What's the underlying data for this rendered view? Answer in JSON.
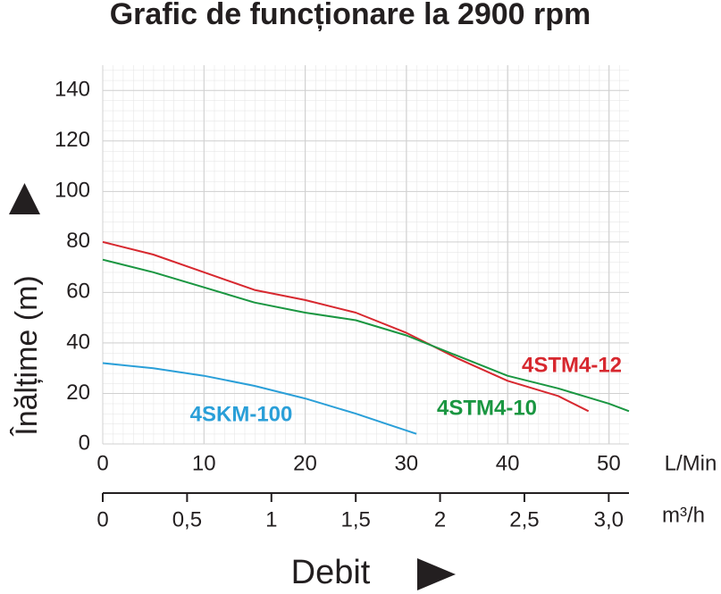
{
  "chart_data": {
    "type": "line",
    "title": "Grafic de funcționare la 2900 rpm",
    "y_label": "Înălțime (m)",
    "x_label": "Debit",
    "x_unit": "L/Min",
    "x2_unit": "m³/h",
    "xlim": [
      0,
      52
    ],
    "xticks": [
      0,
      10,
      20,
      30,
      40,
      50
    ],
    "x2lim": [
      0,
      3.12
    ],
    "x2ticks": [
      0,
      {
        "value": 0.5,
        "label": "0,5"
      },
      1,
      {
        "value": 1.5,
        "label": "1,5"
      },
      2,
      {
        "value": 2.5,
        "label": "2,5"
      },
      {
        "value": 3.0,
        "label": "3,0"
      }
    ],
    "ylim": [
      0,
      150
    ],
    "yticks": [
      0,
      20,
      40,
      60,
      80,
      100,
      120,
      140
    ],
    "grid": true,
    "series": [
      {
        "name": "4STM4-12",
        "color": "#d7282f",
        "x": [
          0,
          5,
          10,
          15,
          20,
          25,
          30,
          35,
          40,
          45,
          48
        ],
        "values": [
          80,
          75,
          68,
          61,
          57,
          52,
          44,
          34,
          25,
          19,
          13
        ]
      },
      {
        "name": "4STM4-10",
        "color": "#1a9641",
        "x": [
          0,
          5,
          10,
          15,
          20,
          25,
          30,
          35,
          40,
          45,
          50,
          52
        ],
        "values": [
          73,
          68,
          62,
          56,
          52,
          49,
          43,
          35,
          27,
          22,
          16,
          13
        ]
      },
      {
        "name": "4SKM-100",
        "color": "#2a9fd8",
        "x": [
          0,
          5,
          10,
          15,
          20,
          25,
          28,
          31
        ],
        "values": [
          32,
          30,
          27,
          23,
          18,
          12,
          8,
          4
        ]
      }
    ]
  }
}
